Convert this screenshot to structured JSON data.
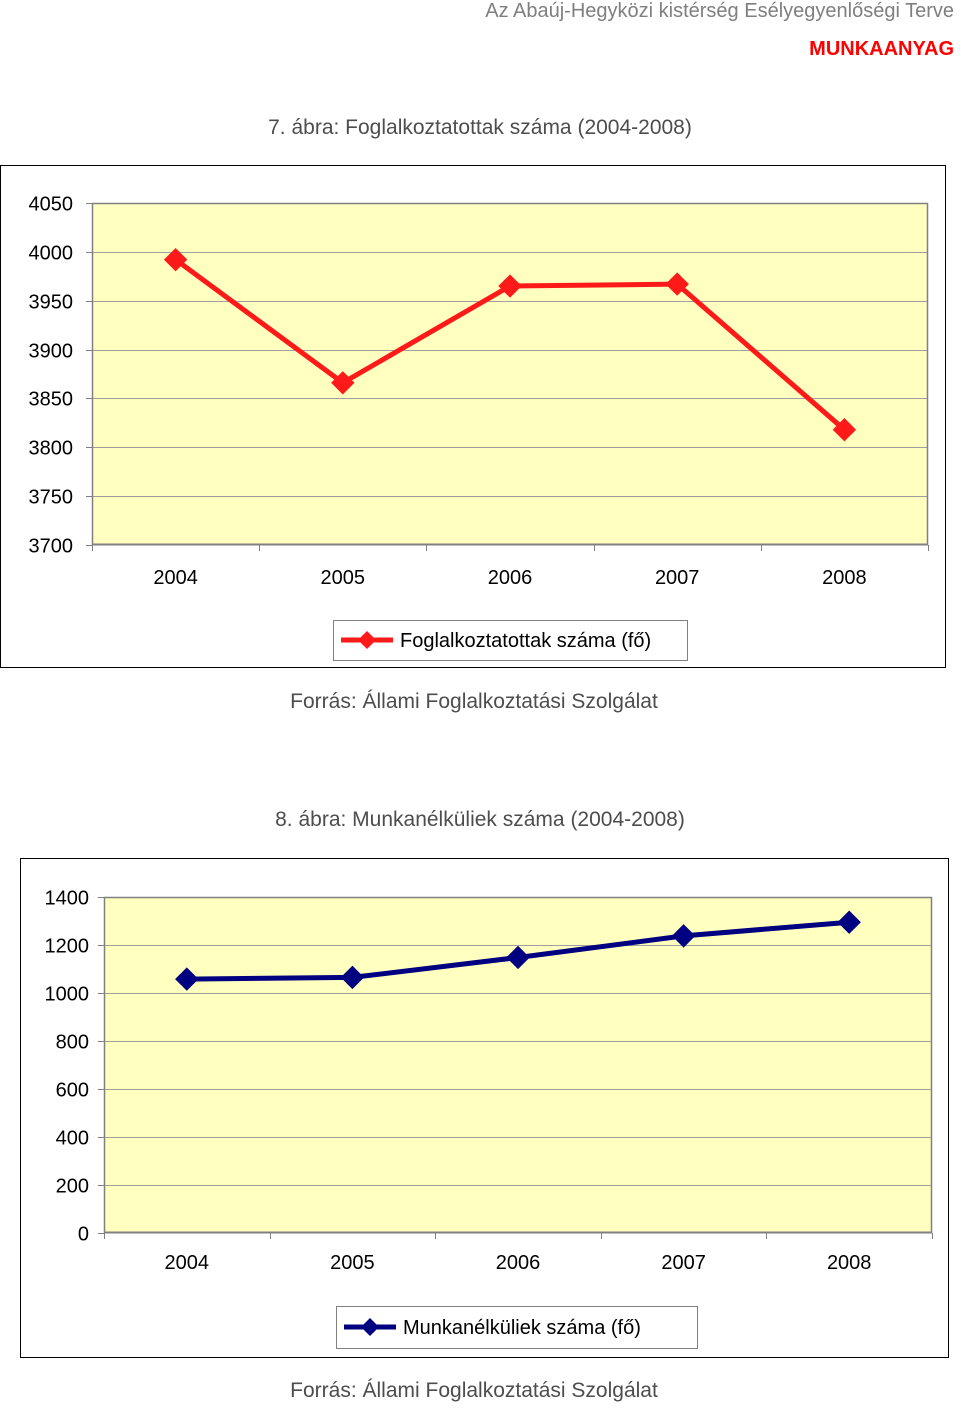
{
  "header": {
    "title": "Az Abaúj-Hegyközi kistérség Esélyegyenlőségi Terve",
    "status": "MUNKAANYAG"
  },
  "chart_data": [
    {
      "type": "line",
      "title": "7. ábra: Foglalkoztatottak száma (2004-2008)",
      "categories": [
        "2004",
        "2005",
        "2006",
        "2007",
        "2008"
      ],
      "series": [
        {
          "name": "Foglalkoztatottak száma (fő)",
          "color": "#ff1a1a",
          "marker": "diamond",
          "values": [
            3992,
            3866,
            3965,
            3967,
            3818
          ]
        }
      ],
      "ylim": [
        3700,
        4050
      ],
      "yticks": [
        "3700",
        "3750",
        "3800",
        "3850",
        "3900",
        "3950",
        "4000",
        "4050"
      ],
      "grid": true,
      "plot_background": "#ffffc0",
      "legend": "bottom",
      "source": "Forrás: Állami Foglalkoztatási Szolgálat"
    },
    {
      "type": "line",
      "title": "8. ábra: Munkanélküliek száma (2004-2008)",
      "categories": [
        "2004",
        "2005",
        "2006",
        "2007",
        "2008"
      ],
      "series": [
        {
          "name": "Munkanélküliek száma (fő)",
          "color": "#000080",
          "marker": "diamond",
          "values": [
            1058,
            1065,
            1148,
            1238,
            1295
          ]
        }
      ],
      "ylim": [
        0,
        1400
      ],
      "yticks": [
        "0",
        "200",
        "400",
        "600",
        "800",
        "1000",
        "1200",
        "1400"
      ],
      "grid": true,
      "plot_background": "#ffffc0",
      "legend": "bottom",
      "source": "Forrás: Állami Foglalkoztatási Szolgálat"
    }
  ]
}
